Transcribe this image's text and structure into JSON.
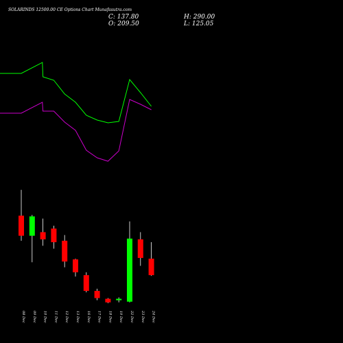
{
  "title": "SOLARINDS 12500.00 CE Options Chart Munafasutra.com",
  "ohlc": {
    "close_label": "C: 137.80",
    "open_label": "O: 209.50",
    "high_label": "H: 290.00",
    "low_label": "L: 125.05"
  },
  "colors": {
    "background": "#000000",
    "up": "#00ff00",
    "down": "#ff0000",
    "wick": "#ffffff",
    "upper_band": "#00ff00",
    "lower_band": "#cc00cc"
  },
  "chart_data": {
    "type": "candlestick",
    "x_ticks": [
      "08 Dec",
      "09 Dec",
      "10 Dec",
      "11 Dec",
      "12 Dec",
      "13 Dec",
      "16 Dec",
      "17 Dec",
      "18 Dec",
      "19 Dec",
      "22 Dec",
      "23 Dec",
      "24 Dec"
    ],
    "candles": [
      {
        "date": "08 Dec",
        "open": 236,
        "high": 272,
        "low": 201,
        "close": 208
      },
      {
        "date": "09 Dec",
        "open": 208,
        "high": 237,
        "low": 171,
        "close": 235
      },
      {
        "date": "10 Dec",
        "open": 213,
        "high": 232,
        "low": 194,
        "close": 203
      },
      {
        "date": "11 Dec",
        "open": 218,
        "high": 222,
        "low": 190,
        "close": 199
      },
      {
        "date": "12 Dec",
        "open": 201,
        "high": 209,
        "low": 164,
        "close": 172
      },
      {
        "date": "13 Dec",
        "open": 175,
        "high": 176,
        "low": 151,
        "close": 157
      },
      {
        "date": "16 Dec",
        "open": 153,
        "high": 157,
        "low": 129,
        "close": 131
      },
      {
        "date": "17 Dec",
        "open": 131,
        "high": 134,
        "low": 118,
        "close": 121
      },
      {
        "date": "18 Dec",
        "open": 120,
        "high": 121,
        "low": 114,
        "close": 115
      },
      {
        "date": "19 Dec",
        "open": 118,
        "high": 122,
        "low": 115,
        "close": 120
      },
      {
        "date": "22 Dec",
        "open": 116,
        "high": 228,
        "low": 115,
        "close": 204
      },
      {
        "date": "23 Dec",
        "open": 203,
        "high": 213,
        "low": 166,
        "close": 177
      },
      {
        "date": "24 Dec",
        "open": 176,
        "high": 199,
        "low": 152,
        "close": 153
      }
    ],
    "upper_band": [
      {
        "date": "07 Dec",
        "value": 107
      },
      {
        "date": "08 Dec",
        "value": 107
      },
      {
        "date": "09 Dec",
        "value": 91
      },
      {
        "date": "10 Dec",
        "value": 112
      },
      {
        "date": "11 Dec",
        "value": 117
      },
      {
        "date": "12 Dec",
        "value": 137
      },
      {
        "date": "13 Dec",
        "value": 149
      },
      {
        "date": "16 Dec",
        "value": 168
      },
      {
        "date": "17 Dec",
        "value": 175
      },
      {
        "date": "18 Dec",
        "value": 179
      },
      {
        "date": "19 Dec",
        "value": 177
      },
      {
        "date": "22 Dec",
        "value": 116
      },
      {
        "date": "23 Dec",
        "value": 135
      },
      {
        "date": "24 Dec",
        "value": 155
      }
    ],
    "lower_band": [
      {
        "date": "07 Dec",
        "value": 165
      },
      {
        "date": "08 Dec",
        "value": 165
      },
      {
        "date": "09 Dec",
        "value": 149
      },
      {
        "date": "10 Dec",
        "value": 162
      },
      {
        "date": "11 Dec",
        "value": 162
      },
      {
        "date": "12 Dec",
        "value": 178
      },
      {
        "date": "13 Dec",
        "value": 190
      },
      {
        "date": "16 Dec",
        "value": 219
      },
      {
        "date": "17 Dec",
        "value": 230
      },
      {
        "date": "18 Dec",
        "value": 235
      },
      {
        "date": "19 Dec",
        "value": 220
      },
      {
        "date": "22 Dec",
        "value": 145
      },
      {
        "date": "23 Dec",
        "value": 152
      },
      {
        "date": "24 Dec",
        "value": 160
      }
    ]
  }
}
